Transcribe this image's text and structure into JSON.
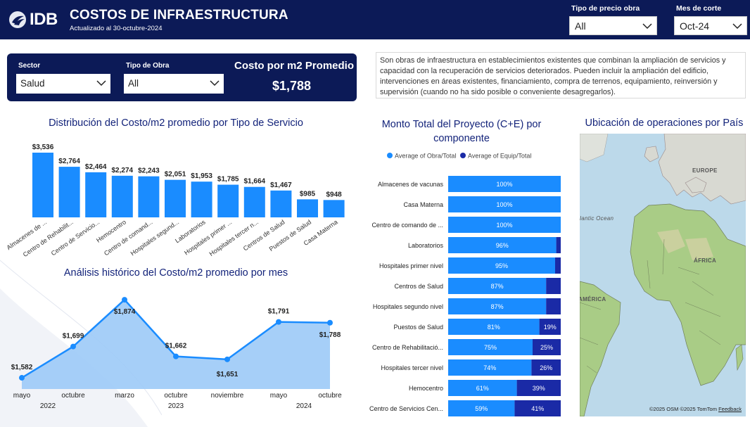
{
  "header": {
    "logo_text": "IDB",
    "title": "COSTOS DE INFRAESTRUCTURA",
    "subtitle": "Actualizado al 30-octubre-2024",
    "filters": [
      {
        "label": "Tipo de precio obra",
        "value": "All"
      },
      {
        "label": "Mes de corte",
        "value": "Oct-24"
      }
    ]
  },
  "filter_panel": {
    "sector": {
      "label": "Sector",
      "value": "Salud"
    },
    "tipo_obra": {
      "label": "Tipo de Obra",
      "value": "All"
    },
    "kpi": {
      "title": "Costo por m2 Promedio",
      "value": "$1,788"
    }
  },
  "description": "Son obras de infraestructura en establecimientos existentes que combinan la ampliación de servicios y capacidad con la recuperación de servicios deteriorados. Pueden incluir la ampliación del edificio, intervenciones en áreas existentes, financiamiento, compra de terrenos, equipamiento, reinversión y supervisión (cuando no ha sido posible o conveniente desagregarlos).",
  "colors": {
    "navy": "#0c1a57",
    "bar_blue": "#1a8cff",
    "dark_blue": "#1a2aa6",
    "area_blue": "#9ccaf7",
    "title_blue": "#13237a"
  },
  "chart_data": [
    {
      "type": "bar",
      "title": "Distribución del Costo/m2 promedio por Tipo de Servicio",
      "categories": [
        "Almacenes de ...",
        "Centro de Rehabilit...",
        "Centro de Servicio...",
        "Hemocentro",
        "Centro de comand...",
        "Hospitales segund...",
        "Laboratorios",
        "Hospitales primer ...",
        "Hospitales tercer n...",
        "Centros de Salud",
        "Puestos de Salud",
        "Casa Materna"
      ],
      "values": [
        3536,
        2764,
        2464,
        2274,
        2243,
        2051,
        1953,
        1785,
        1664,
        1467,
        985,
        948
      ],
      "value_labels": [
        "$3,536",
        "$2,764",
        "$2,464",
        "$2,274",
        "$2,243",
        "$2,051",
        "$1,953",
        "$1,785",
        "$1,664",
        "$1,467",
        "$985",
        "$948"
      ],
      "ylim": [
        0,
        3536
      ]
    },
    {
      "type": "area",
      "title": "Análisis histórico del Costo/m2 promedio por mes",
      "x": [
        "mayo",
        "octubre",
        "marzo",
        "octubre",
        "noviembre",
        "mayo",
        "octubre"
      ],
      "years": [
        {
          "label": "2022"
        },
        {
          "label": "2023"
        },
        {
          "label": "2024"
        }
      ],
      "values": [
        1582,
        1699,
        1874,
        1662,
        1651,
        1791,
        1788
      ],
      "value_labels": [
        "$1,582",
        "$1,699",
        "$1,874",
        "$1,662",
        "$1,651",
        "$1,791",
        "$1,788"
      ],
      "ylim": [
        1540,
        1890
      ]
    },
    {
      "type": "bar",
      "title": "Monto Total del Proyecto (C+E) por componente",
      "legend": [
        {
          "name": "Average of Obra/Total",
          "color": "#1a8cff"
        },
        {
          "name": "Average of Equip/Total",
          "color": "#1a2aa6"
        }
      ],
      "legend_position": "top",
      "categories": [
        "Almacenes de vacunas",
        "Casa Materna",
        "Centro de comando de ...",
        "Laboratorios",
        "Hospitales primer nivel",
        "Centros de Salud",
        "Hospitales segundo nivel",
        "Puestos de Salud",
        "Centro de Rehabilitació...",
        "Hospitales tercer nivel",
        "Hemocentro",
        "Centro de Servicios Cen..."
      ],
      "series": [
        {
          "name": "Average of Obra/Total",
          "values": [
            100,
            100,
            100,
            96,
            95,
            87,
            87,
            81,
            75,
            74,
            61,
            59
          ],
          "labels": [
            "100%",
            "100%",
            "100%",
            "96%",
            "95%",
            "87%",
            "87%",
            "81%",
            "75%",
            "74%",
            "61%",
            "59%"
          ]
        },
        {
          "name": "Average of Equip/Total",
          "values": [
            0,
            0,
            0,
            4,
            5,
            13,
            13,
            19,
            25,
            26,
            39,
            41
          ],
          "labels": [
            "",
            "",
            "",
            "",
            "",
            "",
            "",
            "19%",
            "25%",
            "26%",
            "39%",
            "41%"
          ]
        }
      ]
    }
  ],
  "map": {
    "title": "Ubicación de operaciones por País",
    "labels": {
      "europe": "EUROPE",
      "ocean": "Atlantic Ocean",
      "africa": "ÁFRICA",
      "america": "AMÉRICA"
    },
    "attribution": "©2025 OSM ©2025 TomTom",
    "feedback": "Feedback"
  }
}
